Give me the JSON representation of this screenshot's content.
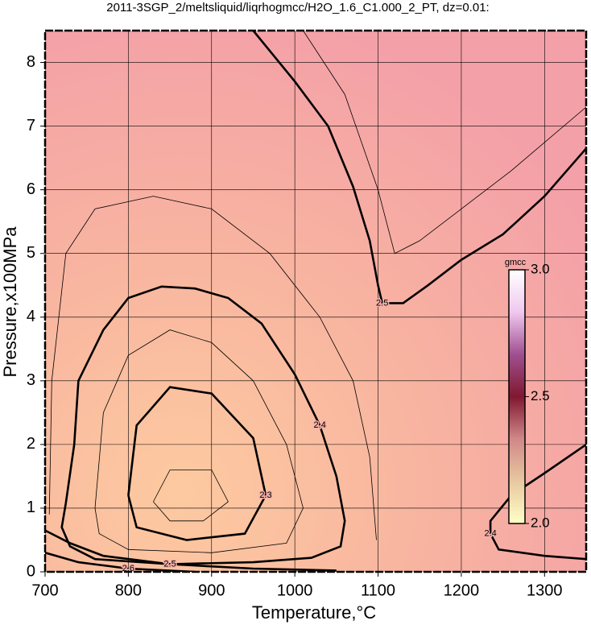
{
  "chart_data": {
    "type": "contour",
    "title": "2011-3SGP_2/meltsliquid/liqrhogmcc/H2O_1.6_C1.000_2_PT, dz=0.01:",
    "x_label": "Temperature,°C",
    "y_label": "Pressure,x100MPa",
    "xlim": [
      700,
      1350
    ],
    "ylim": [
      0,
      8.5
    ],
    "xticks": [
      700,
      800,
      900,
      1000,
      1100,
      1200,
      1300
    ],
    "yticks": [
      0,
      1,
      2,
      3,
      4,
      5,
      6,
      7,
      8
    ],
    "grid": true,
    "color": "#000000",
    "contours": [
      {
        "level": 2.4,
        "x": [
          725,
          735,
          740,
          770,
          800,
          840,
          880,
          920,
          960,
          1000,
          1030,
          1050,
          1060,
          1055,
          1020,
          950,
          850,
          760,
          730,
          720,
          725
        ],
        "y": [
          1.08,
          2.0,
          3.0,
          3.8,
          4.3,
          4.48,
          4.45,
          4.3,
          3.9,
          3.1,
          2.3,
          1.5,
          0.8,
          0.4,
          0.22,
          0.15,
          0.12,
          0.2,
          0.4,
          0.7,
          1.08
        ]
      },
      {
        "level": 2.5,
        "x": [
          950,
          1000,
          1040,
          1070,
          1090,
          1100,
          1105,
          1130,
          1160,
          1200,
          1250,
          1300,
          1350
        ],
        "y": [
          8.5,
          7.7,
          7.0,
          6.05,
          5.2,
          4.5,
          4.22,
          4.22,
          4.5,
          4.9,
          5.3,
          5.9,
          6.65
        ]
      },
      {
        "level": 2.4,
        "x": [
          1350,
          1300,
          1260,
          1235,
          1235,
          1245,
          1300,
          1350
        ],
        "y": [
          2.0,
          1.55,
          1.2,
          0.8,
          0.6,
          0.35,
          0.25,
          0.2
        ]
      },
      {
        "level": 2.5,
        "x": [
          700,
          730,
          770,
          850,
          950,
          1050
        ],
        "y": [
          0.65,
          0.45,
          0.25,
          0.12,
          0.05,
          0.02
        ]
      },
      {
        "level": 2.35,
        "x": [
          760,
          770,
          800,
          850,
          900,
          950,
          990,
          1010,
          990,
          900,
          800,
          765,
          760
        ],
        "y": [
          1.0,
          2.5,
          3.4,
          3.8,
          3.6,
          3.0,
          2.0,
          1.0,
          0.45,
          0.3,
          0.35,
          0.6,
          1.0
        ]
      },
      {
        "level": 2.3,
        "x": [
          800,
          810,
          850,
          900,
          950,
          965,
          940,
          870,
          810,
          800
        ],
        "y": [
          1.2,
          2.3,
          2.9,
          2.8,
          2.1,
          1.2,
          0.6,
          0.5,
          0.7,
          1.2
        ]
      },
      {
        "level": 2.25,
        "x": [
          830,
          850,
          900,
          920,
          890,
          850,
          830
        ],
        "y": [
          1.1,
          1.6,
          1.6,
          1.1,
          0.8,
          0.8,
          1.1
        ]
      },
      {
        "level": 2.45,
        "x": [
          705,
          708,
          725,
          760,
          830,
          900,
          970,
          1030,
          1070,
          1090,
          1098
        ],
        "y": [
          0.9,
          3.0,
          5.0,
          5.7,
          5.9,
          5.7,
          5.0,
          4.0,
          3.0,
          1.8,
          0.5
        ]
      },
      {
        "level": 2.55,
        "x": [
          1010,
          1060,
          1100,
          1120,
          1150,
          1200,
          1260,
          1350
        ],
        "y": [
          8.5,
          7.5,
          6.0,
          5.0,
          5.2,
          5.7,
          6.3,
          7.3
        ]
      },
      {
        "level": 2.6,
        "x": [
          700,
          740,
          800,
          880
        ],
        "y": [
          0.3,
          0.15,
          0.05,
          0.0
        ]
      }
    ],
    "colorbar": {
      "title": "gmcc",
      "lim": [
        2,
        3
      ],
      "ticks": [
        {
          "value": 2,
          "label": "2.0"
        },
        2.5,
        {
          "value": 3,
          "label": "3.0"
        }
      ],
      "colors": [
        "#ffffc8",
        "#e8c8a0",
        "#d08888",
        "#801830",
        "#a05090",
        "#f0c8f0",
        "#ffffff"
      ]
    }
  }
}
